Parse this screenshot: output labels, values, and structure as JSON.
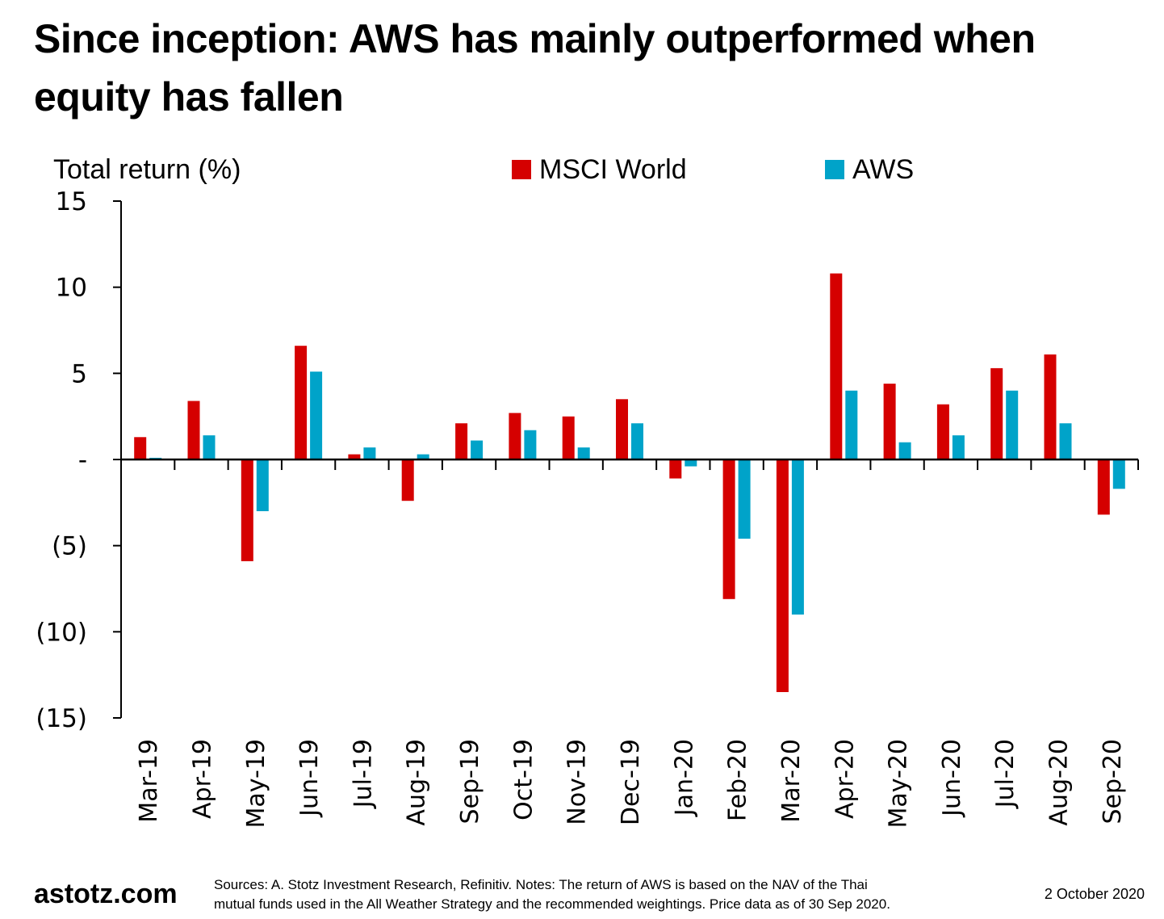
{
  "header": {
    "title": "Since inception: AWS has mainly outperformed when equity has fallen"
  },
  "footer": {
    "brand": "astotz.com",
    "notes_line1": "Sources: A. Stotz Investment Research, Refinitiv. Notes: The return of AWS is based on the NAV of the Thai",
    "notes_line2": "mutual funds used in the All Weather Strategy and the recommended weightings. Price data as of 30 Sep 2020.",
    "date": "2 October 2020"
  },
  "colors": {
    "msci": "#d50000",
    "aws": "#00a3c9",
    "axis": "#000000"
  },
  "chart_data": {
    "type": "bar",
    "title": "Since inception: AWS has mainly outperformed when equity has fallen",
    "xlabel": "",
    "ylabel": "Total return (%)",
    "ylim": [
      -15,
      15
    ],
    "yticks": [
      15,
      10,
      5,
      0,
      -5,
      -10,
      -15
    ],
    "ytick_labels": [
      "15",
      "10",
      "5",
      "-",
      "(5)",
      "(10)",
      "(15)"
    ],
    "grid": false,
    "legend_position": "top-center",
    "categories": [
      "Mar-19",
      "Apr-19",
      "May-19",
      "Jun-19",
      "Jul-19",
      "Aug-19",
      "Sep-19",
      "Oct-19",
      "Nov-19",
      "Dec-19",
      "Jan-20",
      "Feb-20",
      "Mar-20",
      "Apr-20",
      "May-20",
      "Jun-20",
      "Jul-20",
      "Aug-20",
      "Sep-20"
    ],
    "series": [
      {
        "name": "MSCI World",
        "color": "#d50000",
        "values": [
          1.3,
          3.4,
          -5.9,
          6.6,
          0.3,
          -2.4,
          2.1,
          2.7,
          2.5,
          3.5,
          -1.1,
          -8.1,
          -13.5,
          10.8,
          4.4,
          3.2,
          5.3,
          6.1,
          -3.2
        ]
      },
      {
        "name": "AWS",
        "color": "#00a3c9",
        "values": [
          0.1,
          1.4,
          -3.0,
          5.1,
          0.7,
          0.3,
          1.1,
          1.7,
          0.7,
          2.1,
          -0.4,
          -4.6,
          -9.0,
          4.0,
          1.0,
          1.4,
          4.0,
          2.1,
          -1.7
        ]
      }
    ]
  }
}
